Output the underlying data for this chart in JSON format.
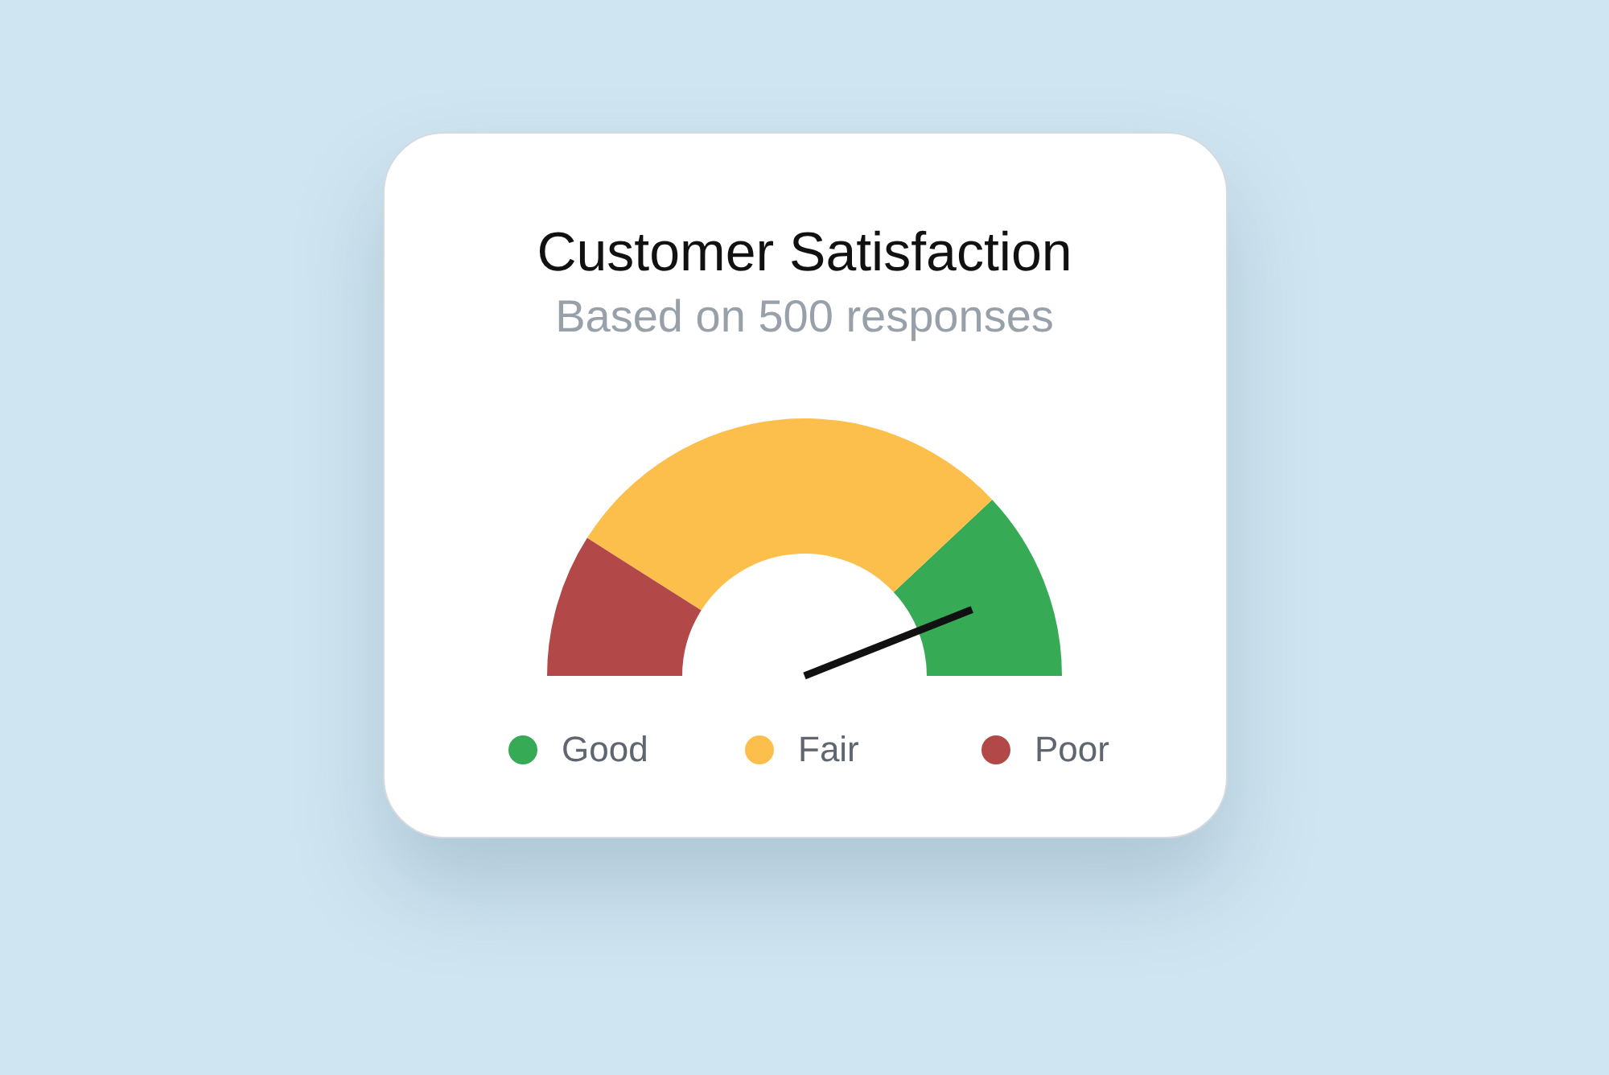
{
  "chart_data": {
    "type": "donut",
    "title": "Customer Satisfaction",
    "subtitle": "Based on 500 responses",
    "categories": [
      "Good",
      "Fair",
      "Poor"
    ],
    "values": [
      24,
      58,
      18
    ],
    "colors": [
      "#36aa55",
      "#fdbf4b",
      "#b24848"
    ],
    "legend": "bottom",
    "needle": "Good"
  }
}
